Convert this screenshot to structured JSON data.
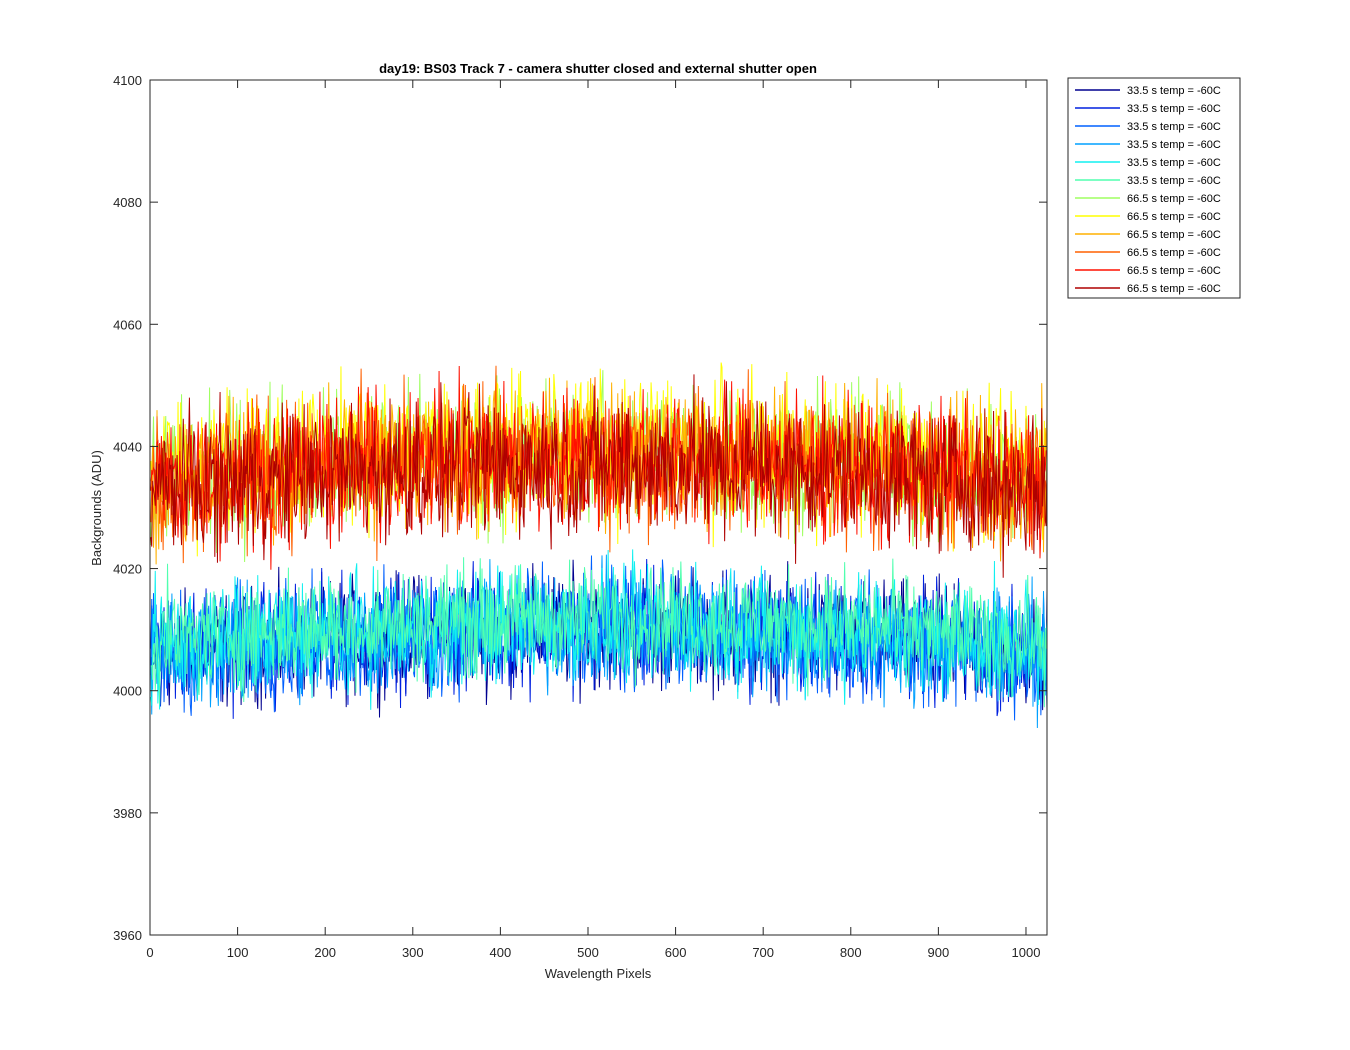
{
  "chart_data": {
    "type": "line",
    "title": "day19: BS03  Track 7 - camera shutter closed and external shutter open",
    "xlabel": "Wavelength Pixels",
    "ylabel": "Backgrounds (ADU)",
    "xlim": [
      0,
      1024
    ],
    "ylim": [
      3960,
      4100
    ],
    "xticks": [
      0,
      100,
      200,
      300,
      400,
      500,
      600,
      700,
      800,
      900,
      1000
    ],
    "yticks": [
      3960,
      3980,
      4000,
      4020,
      4040,
      4060,
      4080,
      4100
    ],
    "grid": false,
    "legend_position": "outside-top-right",
    "x_range_points": [
      1,
      1024
    ],
    "series": [
      {
        "name": "33.5 s temp = -60C",
        "color": "#00008f",
        "mean": 4006,
        "amplitude": 14
      },
      {
        "name": "33.5 s temp = -60C",
        "color": "#0020df",
        "mean": 4006,
        "amplitude": 14
      },
      {
        "name": "33.5 s temp = -60C",
        "color": "#0060ff",
        "mean": 4006,
        "amplitude": 14
      },
      {
        "name": "33.5 s temp = -60C",
        "color": "#00a0ff",
        "mean": 4006,
        "amplitude": 14
      },
      {
        "name": "33.5 s temp = -60C",
        "color": "#10f0f0",
        "mean": 4007,
        "amplitude": 14
      },
      {
        "name": "33.5 s temp = -60C",
        "color": "#50ffaf",
        "mean": 4008,
        "amplitude": 13
      },
      {
        "name": "66.5 s temp = -60C",
        "color": "#9fff60",
        "mean": 4035,
        "amplitude": 17
      },
      {
        "name": "66.5 s temp = -60C",
        "color": "#ffff00",
        "mean": 4036,
        "amplitude": 17
      },
      {
        "name": "66.5 s temp = -60C",
        "color": "#ffb000",
        "mean": 4035,
        "amplitude": 17
      },
      {
        "name": "66.5 s temp = -60C",
        "color": "#ff6000",
        "mean": 4034,
        "amplitude": 17
      },
      {
        "name": "66.5 s temp = -60C",
        "color": "#ff1000",
        "mean": 4034,
        "amplitude": 17
      },
      {
        "name": "66.5 s temp = -60C",
        "color": "#af0000",
        "mean": 4033,
        "amplitude": 17
      }
    ]
  }
}
